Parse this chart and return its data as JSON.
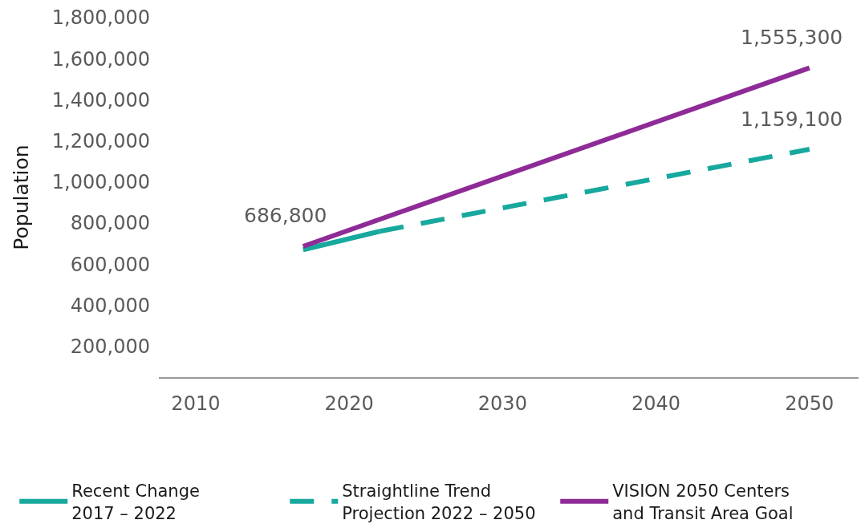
{
  "chart_data": {
    "type": "line",
    "ylabel": "Population",
    "xlim": [
      2007.6,
      2053.2
    ],
    "xticks": [
      2010,
      2020,
      2030,
      2040,
      2050
    ],
    "ylim": [
      50000,
      1800000
    ],
    "yticks": [
      {
        "value": 200000,
        "label": "200,000"
      },
      {
        "value": 400000,
        "label": "400,000"
      },
      {
        "value": 600000,
        "label": "600,000"
      },
      {
        "value": 800000,
        "label": "800,000"
      },
      {
        "value": 1000000,
        "label": "1,000,000"
      },
      {
        "value": 1200000,
        "label": "1,200,000"
      },
      {
        "value": 1400000,
        "label": "1,400,000"
      },
      {
        "value": 1600000,
        "label": "1,600,000"
      },
      {
        "value": 1800000,
        "label": "1,800,000"
      }
    ],
    "series": [
      {
        "name": "Recent Change 2017 – 2022",
        "color": "#17a89e",
        "x": [
          2017,
          2022
        ],
        "values": [
          670000,
          760000
        ],
        "line_style": "solid"
      },
      {
        "name": "Straightline Trend Projection 2022 – 2050",
        "color": "#17a89e",
        "x": [
          2022,
          2050
        ],
        "values": [
          760000,
          1159100
        ],
        "value_labels": [
          null,
          "1,159,100"
        ],
        "line_style": "dashed"
      },
      {
        "name": "VISION 2050 Centers and Transit Area Goal",
        "color": "#8e2b97",
        "x": [
          2017,
          2050
        ],
        "values": [
          686800,
          1555300
        ],
        "value_labels": [
          "686,800",
          "1,555,300"
        ],
        "line_style": "solid"
      }
    ],
    "legend": "bottom"
  }
}
